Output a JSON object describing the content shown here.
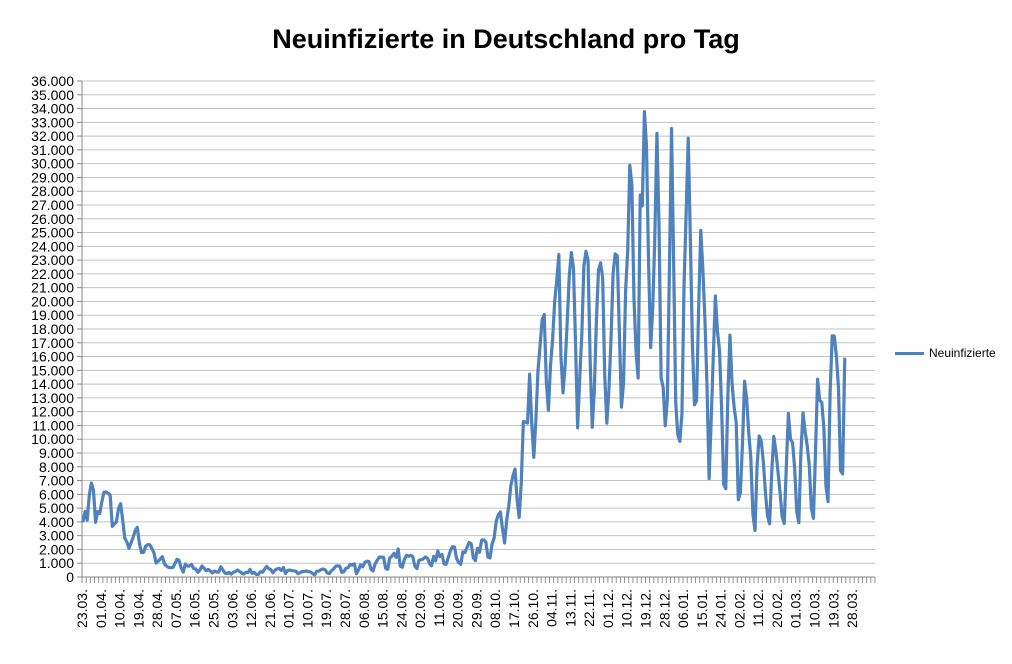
{
  "page": {
    "background": "#FFFFFF"
  },
  "chart_data": {
    "type": "line",
    "title": "Neuinfizierte in Deutschland pro Tag",
    "legend": {
      "position": "right",
      "entries": [
        "Neuinfizierte"
      ]
    },
    "grid": {
      "horizontal": true,
      "vertical": false,
      "gridline_color": "#C3C3C3",
      "axis_color": "#868686",
      "tick_color": "#868686"
    },
    "y_axis": {
      "min": 0,
      "max": 36000,
      "step": 1000,
      "tick_labels": [
        "36.000",
        "35.000",
        "34.000",
        "33.000",
        "32.000",
        "31.000",
        "30.000",
        "29.000",
        "28.000",
        "27.000",
        "26.000",
        "25.000",
        "24.000",
        "23.000",
        "22.000",
        "21.000",
        "20.000",
        "19.000",
        "18.000",
        "17.000",
        "16.000",
        "15.000",
        "14.000",
        "13.000",
        "12.000",
        "11.000",
        "10.000",
        "9.000",
        "8.000",
        "7.000",
        "6.000",
        "5.000",
        "4.000",
        "3.000",
        "2.000",
        "1.000",
        "0"
      ]
    },
    "x_axis": {
      "tick_labels": [
        "23.03.",
        "01.04.",
        "10.04.",
        "19.04.",
        "28.04.",
        "07.05.",
        "16.05.",
        "25.05.",
        "03.06.",
        "12.06.",
        "21.06.",
        "01.07.",
        "10.07.",
        "19.07.",
        "28.07.",
        "06.08.",
        "15.08.",
        "24.08.",
        "02.09.",
        "11.09.",
        "20.09.",
        "29.09.",
        "08.10.",
        "17.10.",
        "26.10.",
        "04.11.",
        "13.11.",
        "22.11.",
        "01.12.",
        "10.12.",
        "19.12.",
        "28.12.",
        "06.01.",
        "15.01.",
        "24.01.",
        "02.02.",
        "11.02.",
        "20.02.",
        "01.03.",
        "10.03.",
        "19.03.",
        "28.03."
      ],
      "tick_interval_categories": 9,
      "total_categories": 380,
      "label_rotation_degrees": -90
    },
    "series": [
      {
        "name": "Neuinfizierte",
        "color": "#4F81BD",
        "stroke_width": 3.2,
        "values": [
          4062,
          4764,
          4118,
          5940,
          6824,
          6294,
          3965,
          4751,
          4615,
          5453,
          6156,
          6174,
          6082,
          5936,
          3677,
          3834,
          4003,
          4974,
          5323,
          4133,
          2821,
          2537,
          2082,
          2486,
          2866,
          3380,
          3609,
          2458,
          1775,
          1785,
          2237,
          2352,
          2337,
          2055,
          1737,
          1018,
          1144,
          1304,
          1478,
          945,
          793,
          697,
          679,
          685,
          947,
          1284,
          1209,
          667,
          357,
          933,
          798,
          796,
          913,
          620,
          583,
          342,
          513,
          797,
          639,
          460,
          548,
          431,
          289,
          432,
          362,
          353,
          741,
          507,
          286,
          247,
          333,
          213,
          342,
          394,
          507,
          407,
          301,
          214,
          350,
          318,
          555,
          258,
          348,
          192,
          186,
          378,
          345,
          580,
          770,
          601,
          537,
          307,
          503,
          587,
          630,
          477,
          687,
          256,
          466,
          503,
          466,
          446,
          422,
          239,
          312,
          390,
          397,
          442,
          395,
          378,
          248,
          159,
          412,
          429,
          534,
          583,
          529,
          305,
          249,
          454,
          569,
          766,
          815,
          781,
          340,
          390,
          633,
          684,
          902,
          870,
          955,
          240,
          509,
          879,
          741,
          1045,
          1147,
          1122,
          555,
          436,
          966,
          1226,
          1445,
          1449,
          1415,
          625,
          561,
          1390,
          1510,
          1707,
          1427,
          2034,
          782,
          711,
          1278,
          1576,
          1507,
          1571,
          1479,
          785,
          610,
          1218,
          1256,
          1311,
          1453,
          1378,
          988,
          814,
          1499,
          1176,
          1892,
          1484,
          1630,
          948,
          927,
          1407,
          1901,
          2194,
          2179,
          1345,
          1045,
          922,
          1821,
          1769,
          2143,
          2507,
          2407,
          1411,
          1192,
          2089,
          1798,
          2673,
          2693,
          2563,
          1449,
          1382,
          2381,
          2828,
          4058,
          4516,
          4721,
          3483,
          2467,
          4122,
          5132,
          6638,
          7334,
          7830,
          5587,
          4325,
          6868,
          11287,
          11242,
          11176,
          14714,
          11176,
          8685,
          11409,
          14964,
          16774,
          18681,
          19059,
          14177,
          12097,
          15352,
          17214,
          19990,
          21506,
          23399,
          16017,
          13363,
          15332,
          18487,
          21866,
          23542,
          22461,
          16947,
          10824,
          14419,
          17561,
          22609,
          23648,
          22964,
          15741,
          10864,
          13554,
          18633,
          22268,
          22806,
          21695,
          14611,
          11169,
          13604,
          17270,
          22046,
          23449,
          23318,
          17767,
          12332,
          14054,
          20815,
          23679,
          29875,
          28438,
          20200,
          16362,
          14432,
          27728,
          26923,
          33777,
          31300,
          22771,
          16643,
          19528,
          24740,
          32195,
          25533,
          14455,
          13755,
          10976,
          12892,
          22459,
          32552,
          22924,
          12690,
          10315,
          9847,
          11897,
          21237,
          26391,
          31849,
          24694,
          16946,
          12497,
          12802,
          19600,
          25164,
          22368,
          18678,
          13882,
          7141,
          11369,
          15974,
          20398,
          17862,
          16417,
          12257,
          6729,
          6412,
          13202,
          17553,
          14022,
          12321,
          11192,
          5608,
          6114,
          9705,
          14211,
          12908,
          10485,
          8616,
          4535,
          3379,
          8072,
          10237,
          9860,
          8354,
          6114,
          4426,
          3856,
          7556,
          10207,
          9113,
          7676,
          6114,
          4369,
          3883,
          8007,
          11869,
          9997,
          9762,
          7890,
          4732,
          3943,
          9019,
          11912,
          10580,
          9557,
          8103,
          5011,
          4252,
          9146,
          14356,
          12834,
          12674,
          10790,
          6604,
          5480,
          13435,
          17504,
          17482,
          16033,
          13733,
          7709,
          7485,
          15813
        ]
      }
    ]
  }
}
